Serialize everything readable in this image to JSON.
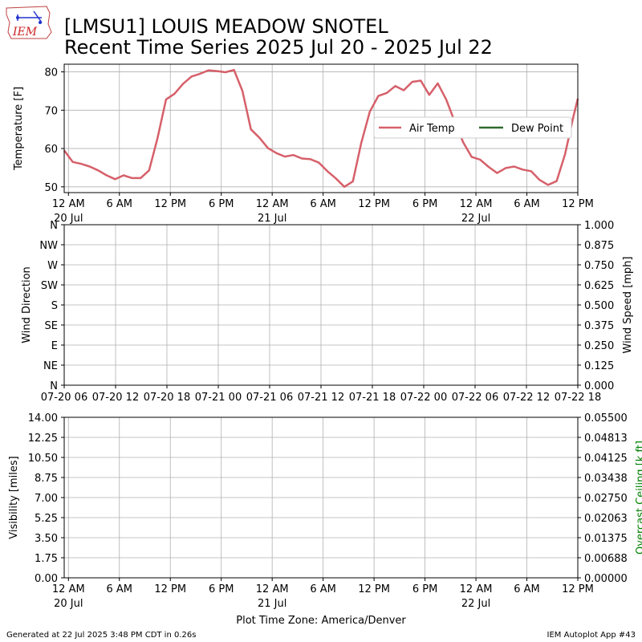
{
  "title": {
    "line1": "[LMSU1] LOUIS MEADOW SNOTEL",
    "line2": "Recent Time Series 2025 Jul 20 - 2025 Jul 22"
  },
  "logo": {
    "text": "IEM",
    "name": "iem-logo"
  },
  "footer": {
    "left": "Generated at 22 Jul 2025 3:48 PM CDT in 0.26s",
    "right": "IEM Autoplot App #43",
    "timezone": "Plot Time Zone: America/Denver"
  },
  "colors": {
    "air_temp": "#d6606a",
    "dew_point": "#2e6b2e",
    "grid": "#b0b0b0",
    "ceiling_label": "#008000"
  },
  "chart_data": [
    {
      "type": "line",
      "name": "temperature-panel",
      "ylabel": "Temperature [F]",
      "ylim": [
        48.5,
        82
      ],
      "yticks": [
        50,
        60,
        70,
        80
      ],
      "xlim_hours": [
        -0.5,
        60
      ],
      "xticks": [
        {
          "h": 0,
          "label": "12 AM",
          "sub": "20 Jul"
        },
        {
          "h": 6,
          "label": "6 AM",
          "sub": ""
        },
        {
          "h": 12,
          "label": "12 PM",
          "sub": ""
        },
        {
          "h": 18,
          "label": "6 PM",
          "sub": ""
        },
        {
          "h": 24,
          "label": "12 AM",
          "sub": "21 Jul"
        },
        {
          "h": 30,
          "label": "6 AM",
          "sub": ""
        },
        {
          "h": 36,
          "label": "12 PM",
          "sub": ""
        },
        {
          "h": 42,
          "label": "6 PM",
          "sub": ""
        },
        {
          "h": 48,
          "label": "12 AM",
          "sub": "22 Jul"
        },
        {
          "h": 54,
          "label": "6 AM",
          "sub": ""
        },
        {
          "h": 60,
          "label": "12 PM",
          "sub": ""
        }
      ],
      "grid": true,
      "legend": {
        "placement": "right",
        "entries": [
          {
            "label": "Air Temp",
            "color": "#d6606a"
          },
          {
            "label": "Dew Point",
            "color": "#2e6b2e"
          }
        ]
      },
      "series": [
        {
          "name": "Air Temp",
          "x": [
            -0.5,
            0.5,
            1.5,
            2.5,
            3.5,
            4.5,
            5.5,
            6.5,
            7.5,
            8.5,
            9.5,
            10.5,
            11.5,
            12.5,
            13.5,
            14.5,
            15.5,
            16.5,
            17.5,
            18.5,
            19.5,
            20.5,
            21.5,
            22.5,
            23.5,
            24.5,
            25.5,
            26.5,
            27.5,
            28.5,
            29.5,
            30.5,
            31.5,
            32.5,
            33.5,
            34.5,
            35.5,
            36.5,
            37.5,
            38.5,
            39.5,
            40.5,
            41.5,
            42.5,
            43.5,
            44.5,
            45.5,
            46.5,
            47.5,
            48.5,
            49.5,
            50.5,
            51.5,
            52.5,
            53.5,
            54.5,
            55.5,
            56.5,
            57.5,
            58.5,
            59.5,
            60.0
          ],
          "y": [
            59.5,
            56.5,
            56.0,
            55.3,
            54.3,
            53.0,
            52.0,
            53.0,
            52.3,
            52.3,
            54.3,
            62.8,
            72.8,
            74.3,
            76.9,
            78.8,
            79.5,
            80.4,
            80.2,
            79.9,
            80.5,
            75.0,
            65.0,
            62.8,
            60.1,
            58.8,
            57.9,
            58.3,
            57.4,
            57.2,
            56.3,
            54.1,
            52.2,
            50.0,
            51.4,
            61.5,
            69.6,
            73.7,
            74.5,
            76.3,
            75.2,
            77.4,
            77.7,
            74.0,
            77.0,
            72.8,
            67.0,
            61.6,
            57.8,
            57.1,
            55.2,
            53.6,
            54.9,
            55.3,
            54.5,
            54.1,
            51.8,
            50.5,
            51.5,
            58.5,
            68.5,
            73.0
          ]
        }
      ]
    },
    {
      "type": "line",
      "name": "wind-panel",
      "ylabel": "Wind Direction",
      "ylabel_right": "Wind Speed [mph]",
      "yticks_left": [
        "N",
        "NE",
        "E",
        "SE",
        "S",
        "SW",
        "W",
        "NW",
        "N"
      ],
      "yticks_right": [
        "0.000",
        "0.125",
        "0.250",
        "0.375",
        "0.500",
        "0.625",
        "0.750",
        "0.875",
        "1.000"
      ],
      "xticks": [
        "07-20 06",
        "07-20 12",
        "07-20 18",
        "07-21 00",
        "07-21 06",
        "07-21 12",
        "07-21 18",
        "07-22 00",
        "07-22 06",
        "07-22 12",
        "07-22 18"
      ],
      "grid": true,
      "series": []
    },
    {
      "type": "line",
      "name": "visibility-panel",
      "ylabel": "Visibility [miles]",
      "ylabel_right": "Overcast Ceiling [k ft]",
      "yticks_left": [
        "0.00",
        "1.75",
        "3.50",
        "5.25",
        "7.00",
        "8.75",
        "10.50",
        "12.25",
        "14.00"
      ],
      "yticks_right": [
        "0.00000",
        "0.00688",
        "0.01375",
        "0.02063",
        "0.02750",
        "0.03438",
        "0.04125",
        "0.04813",
        "0.05500"
      ],
      "grid": true,
      "series": []
    }
  ]
}
